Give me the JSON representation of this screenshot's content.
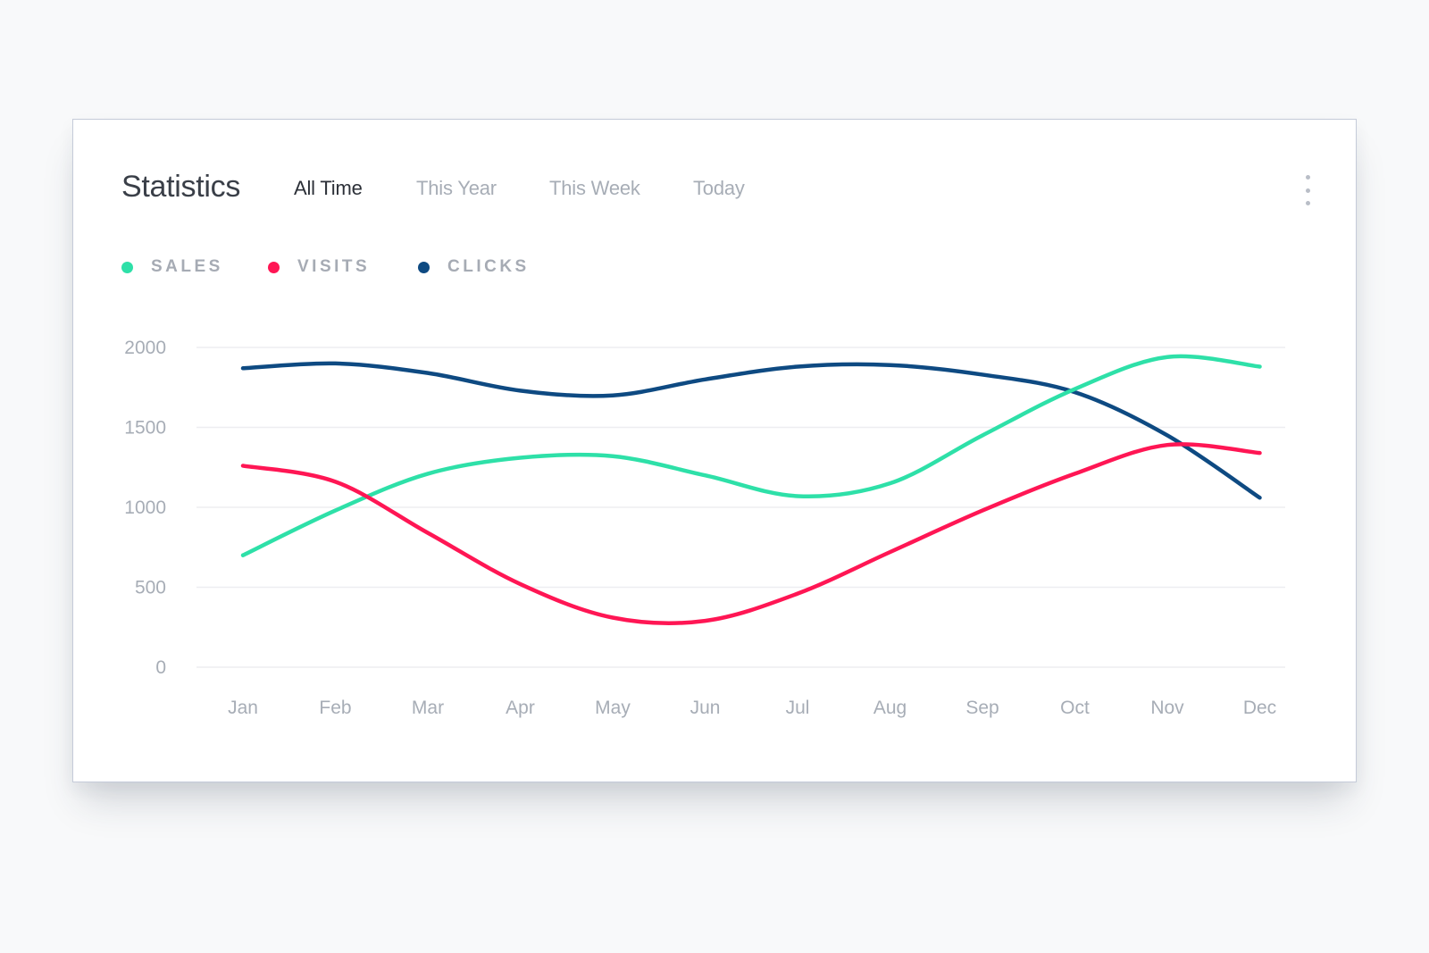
{
  "header": {
    "title": "Statistics",
    "tabs": [
      {
        "label": "All Time",
        "active": true
      },
      {
        "label": "This Year",
        "active": false
      },
      {
        "label": "This Week",
        "active": false
      },
      {
        "label": "Today",
        "active": false
      }
    ],
    "menu_icon": "more-vertical-icon"
  },
  "colors": {
    "sales": "#2ee0a8",
    "visits": "#ff1654",
    "clicks": "#0e4a82",
    "grid": "#edeef1",
    "text_muted": "#a7adb6"
  },
  "chart_data": {
    "type": "line",
    "title": "Statistics",
    "xlabel": "",
    "ylabel": "",
    "categories": [
      "Jan",
      "Feb",
      "Mar",
      "Apr",
      "May",
      "Jun",
      "Jul",
      "Aug",
      "Sep",
      "Oct",
      "Nov",
      "Dec"
    ],
    "ylim": [
      0,
      2000
    ],
    "yticks": [
      0,
      500,
      1000,
      1500,
      2000
    ],
    "grid": true,
    "legend_position": "top-left",
    "series": [
      {
        "name": "SALES",
        "color": "#2ee0a8",
        "values": [
          700,
          980,
          1210,
          1310,
          1320,
          1200,
          1070,
          1150,
          1450,
          1740,
          1940,
          1880
        ]
      },
      {
        "name": "VISITS",
        "color": "#ff1654",
        "values": [
          1260,
          1160,
          840,
          520,
          310,
          290,
          460,
          720,
          980,
          1210,
          1390,
          1340
        ]
      },
      {
        "name": "CLICKS",
        "color": "#0e4a82",
        "values": [
          1870,
          1900,
          1840,
          1730,
          1700,
          1800,
          1880,
          1890,
          1830,
          1720,
          1450,
          1060
        ]
      }
    ]
  }
}
